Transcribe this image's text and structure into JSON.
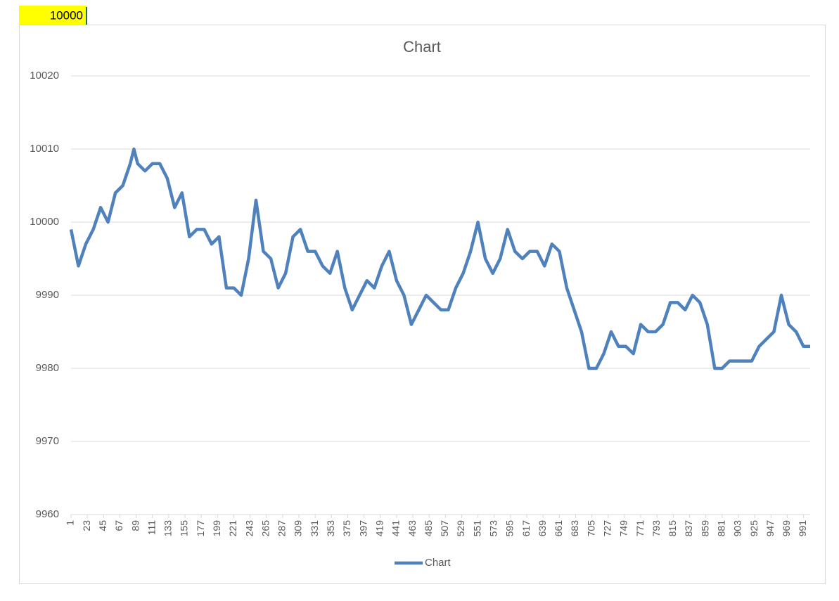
{
  "cell": "10000",
  "chart_data": {
    "type": "line",
    "title": "Chart",
    "series": [
      {
        "name": "Chart",
        "color": "#4f81bd",
        "x": [
          1,
          11,
          21,
          31,
          41,
          51,
          61,
          71,
          81,
          86,
          91,
          101,
          111,
          121,
          131,
          141,
          151,
          161,
          171,
          181,
          191,
          201,
          211,
          221,
          231,
          241,
          251,
          261,
          271,
          281,
          291,
          301,
          311,
          321,
          331,
          341,
          351,
          361,
          371,
          381,
          391,
          401,
          411,
          421,
          431,
          441,
          451,
          461,
          471,
          481,
          491,
          501,
          511,
          521,
          531,
          541,
          551,
          561,
          571,
          581,
          591,
          601,
          611,
          621,
          631,
          641,
          651,
          661,
          671,
          681,
          691,
          701,
          711,
          721,
          731,
          741,
          751,
          761,
          771,
          781,
          791,
          801,
          811,
          821,
          831,
          841,
          851,
          861,
          871,
          881,
          891,
          901,
          911,
          921,
          931,
          941,
          951,
          961,
          971,
          981,
          991,
          1000
        ],
        "values": [
          9999,
          9994,
          9997,
          9999,
          10002,
          10000,
          10004,
          10005,
          10008,
          10010,
          10008,
          10007,
          10008,
          10008,
          10006,
          10002,
          10004,
          9998,
          9999,
          9999,
          9997,
          9998,
          9991,
          9991,
          9990,
          9995,
          10003,
          9996,
          9995,
          9991,
          9993,
          9998,
          9999,
          9996,
          9996,
          9994,
          9993,
          9996,
          9991,
          9988,
          9990,
          9992,
          9991,
          9994,
          9996,
          9992,
          9990,
          9986,
          9988,
          9990,
          9989,
          9988,
          9988,
          9991,
          9993,
          9996,
          10000,
          9995,
          9993,
          9995,
          9999,
          9996,
          9995,
          9996,
          9996,
          9994,
          9997,
          9996,
          9991,
          9988,
          9985,
          9980,
          9980,
          9982,
          9985,
          9983,
          9983,
          9982,
          9986,
          9985,
          9985,
          9986,
          9989,
          9989,
          9988,
          9990,
          9989,
          9986,
          9980,
          9980,
          9981,
          9981,
          9981,
          9981,
          9983,
          9984,
          9985,
          9990,
          9986,
          9985,
          9983,
          9983
        ]
      }
    ],
    "xlim": [
      1,
      1000
    ],
    "xticks": [
      1,
      23,
      45,
      67,
      89,
      111,
      133,
      155,
      177,
      199,
      221,
      243,
      265,
      287,
      309,
      331,
      353,
      375,
      397,
      419,
      441,
      463,
      485,
      507,
      529,
      551,
      573,
      595,
      617,
      639,
      661,
      683,
      705,
      727,
      749,
      771,
      793,
      815,
      837,
      859,
      881,
      903,
      925,
      947,
      969,
      991
    ],
    "ylim": [
      9960,
      10020
    ],
    "yticks": [
      9960,
      9970,
      9980,
      9990,
      10000,
      10010,
      10020
    ],
    "grid": true,
    "legend": "bottom"
  }
}
